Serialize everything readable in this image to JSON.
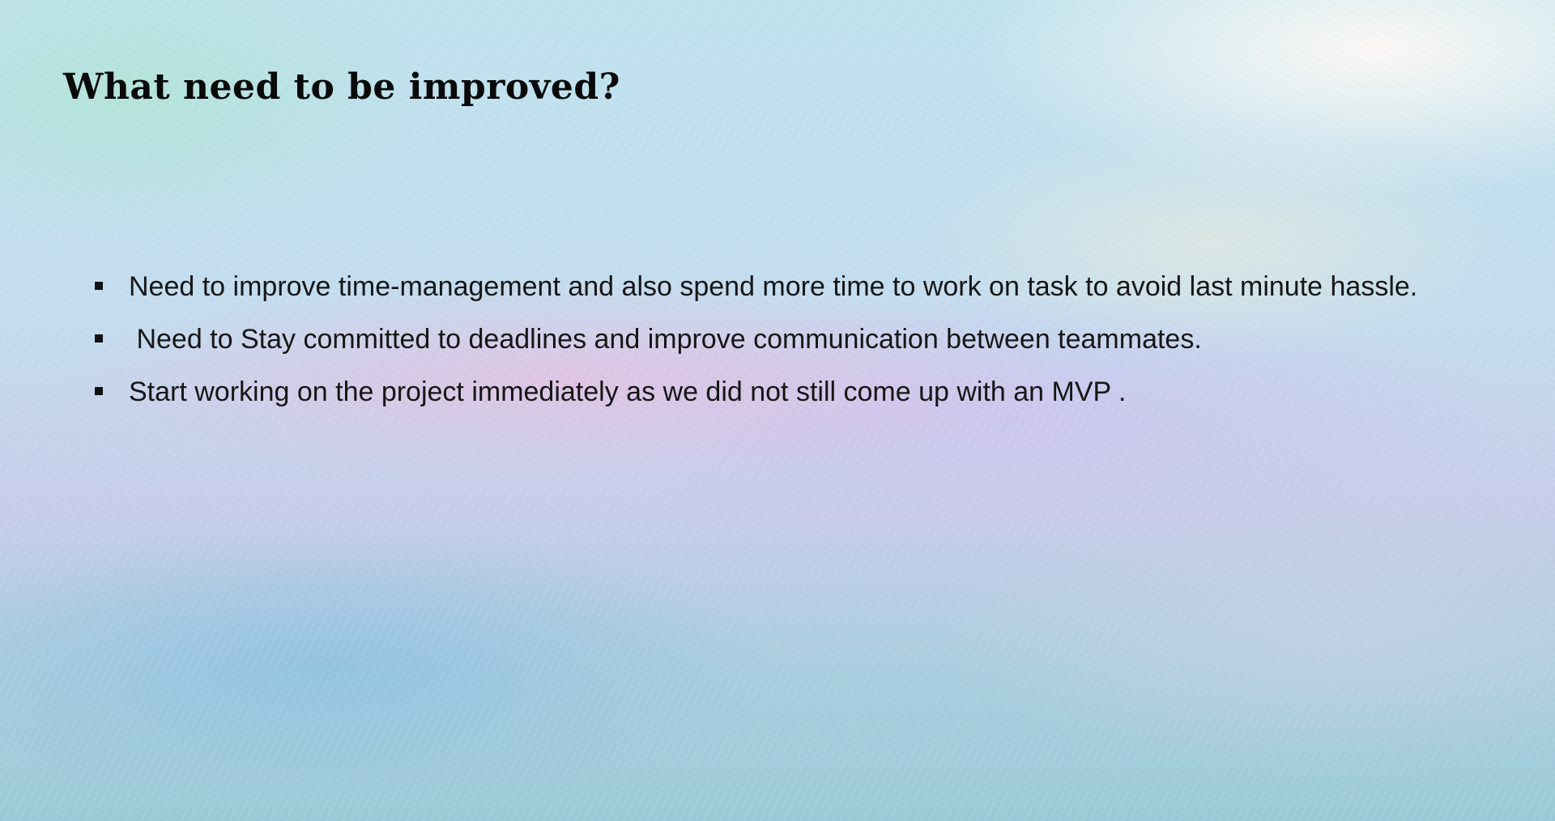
{
  "slide": {
    "title": "What need to be improved?",
    "bullets": [
      "Need to improve time-management and also spend more time to work on task to avoid last minute hassle.",
      " Need to Stay committed to deadlines and improve communication between teammates.",
      "Start working on the project immediately as we did not still come up with an MVP ."
    ]
  }
}
